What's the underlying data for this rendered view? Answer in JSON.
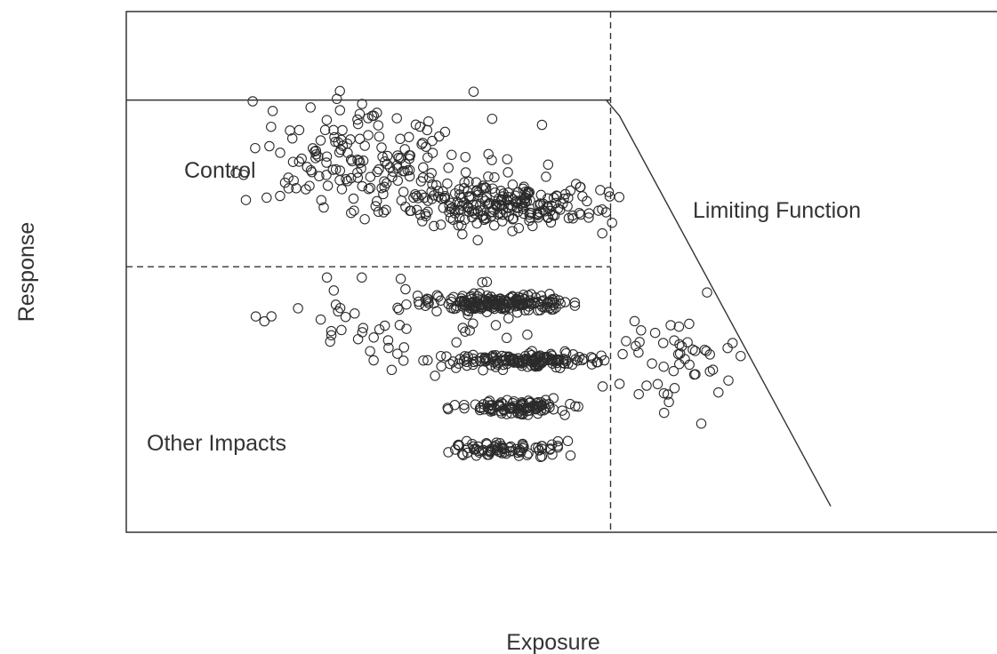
{
  "chart_data": {
    "type": "scatter",
    "title": "",
    "xlabel": "Exposure",
    "ylabel": "Response",
    "xlim": [
      0,
      100
    ],
    "ylim": [
      0,
      100
    ],
    "grid": false,
    "marker": "open-circle",
    "point_color": "#2b2b2b",
    "annotations": {
      "control": "Control",
      "limiting": "Limiting Function",
      "other": "Other Impacts"
    },
    "reference_lines": {
      "threshold_exposure": 55,
      "threshold_response": 51,
      "control_level": 83
    },
    "limiting_function": [
      [
        55,
        83
      ],
      [
        54.5,
        83
      ],
      [
        56,
        80
      ],
      [
        80,
        5
      ]
    ],
    "clusters": [
      {
        "cx": 27,
        "cy": 72,
        "sx": 12,
        "sy": 9,
        "n": 170
      },
      {
        "cx": 43,
        "cy": 63,
        "sx": 9,
        "sy": 4,
        "n": 230
      },
      {
        "cx": 42,
        "cy": 44,
        "sx": 7,
        "sy": 1.3,
        "n": 190
      },
      {
        "cx": 45,
        "cy": 33,
        "sx": 7,
        "sy": 1.3,
        "n": 150
      },
      {
        "cx": 44,
        "cy": 24,
        "sx": 5,
        "sy": 1.2,
        "n": 110
      },
      {
        "cx": 43,
        "cy": 16,
        "sx": 6,
        "sy": 1.5,
        "n": 80
      },
      {
        "cx": 30,
        "cy": 40,
        "sx": 12,
        "sy": 8,
        "n": 60
      },
      {
        "cx": 63,
        "cy": 35,
        "sx": 8,
        "sy": 10,
        "n": 50
      }
    ]
  }
}
